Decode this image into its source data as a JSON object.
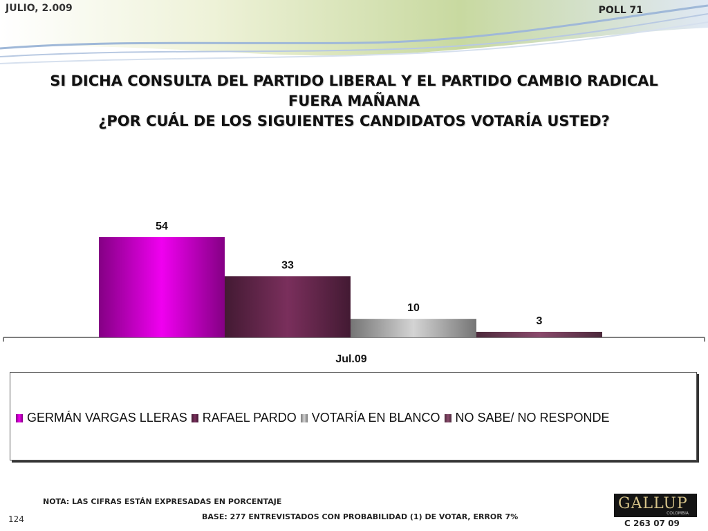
{
  "header": {
    "date": "JULIO, 2.009",
    "poll": "POLL 71"
  },
  "title_lines": [
    "SI DICHA CONSULTA DEL PARTIDO LIBERAL Y EL PARTIDO CAMBIO RADICAL",
    "FUERA MAÑANA",
    "¿POR CUÁL DE LOS SIGUIENTES CANDIDATOS VOTARÍA USTED?"
  ],
  "chart_data": {
    "type": "bar",
    "categories": [
      "Jul.09"
    ],
    "series": [
      {
        "name": "GERMÁN VARGAS LLERAS",
        "values": [
          54
        ],
        "color": "#f000f0"
      },
      {
        "name": "RAFAEL PARDO",
        "values": [
          33
        ],
        "color": "#7a2f5c"
      },
      {
        "name": "VOTARÍA EN BLANCO",
        "values": [
          10
        ],
        "color": "#d4d4d4"
      },
      {
        "name": "NO SABE/ NO RESPONDE",
        "values": [
          3
        ],
        "color": "#8a4a6c"
      }
    ],
    "ylim": [
      0,
      60
    ],
    "grid": false,
    "legend_position": "bottom"
  },
  "footer": {
    "note": "NOTA: LAS CIFRAS ESTÁN EXPRESADAS EN PORCENTAJE",
    "base": "BASE:  277 ENTREVISTADOS CON PROBABILIDAD (1) DE VOTAR, ERROR 7%",
    "page_number": "124",
    "logo_text": "GALLUP",
    "logo_sub": "COLOMBIA",
    "code": "C 263 07 09"
  }
}
